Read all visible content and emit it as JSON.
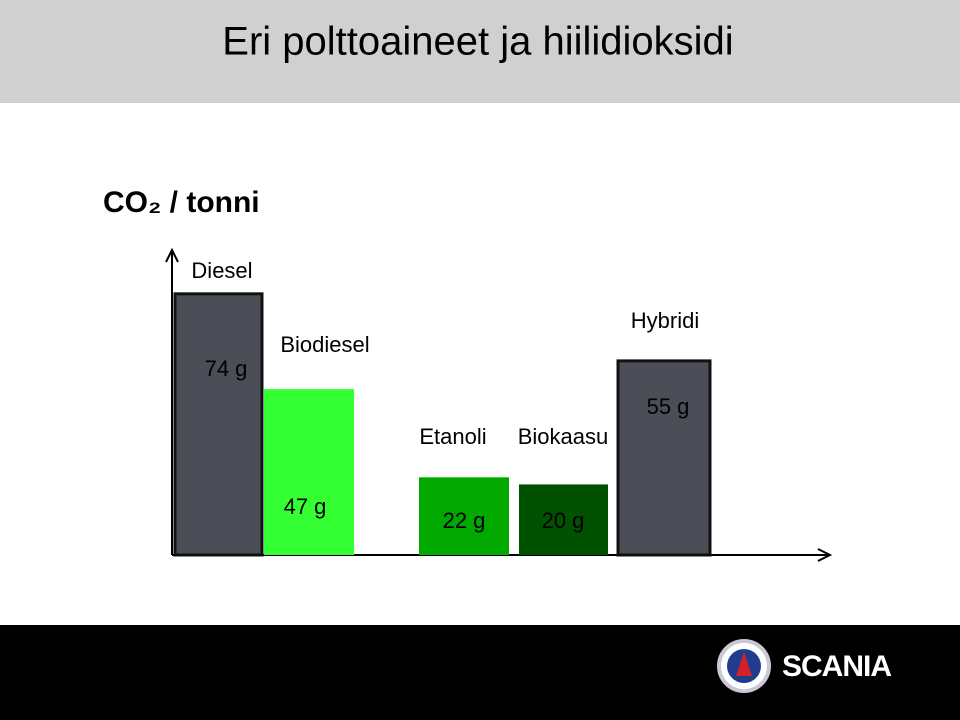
{
  "chart_data": {
    "type": "bar",
    "title": "Eri polttoaineet ja hiilidioksidi",
    "y_label": "CO₂ / tonni",
    "categories": [
      "Diesel",
      "Biodiesel",
      "Etanoli",
      "Biokaasu",
      "Hybridi"
    ],
    "values": [
      74,
      47,
      22,
      20,
      55
    ],
    "value_labels": [
      "74 g",
      "47 g",
      "22 g",
      "20 g",
      "55 g"
    ],
    "colors": [
      "#4b4e57",
      "#33ff33",
      "#00a800",
      "#005200",
      "#4b4e57"
    ],
    "ylim": [
      0,
      85
    ]
  },
  "footer": {
    "logo": "SCANIA"
  }
}
